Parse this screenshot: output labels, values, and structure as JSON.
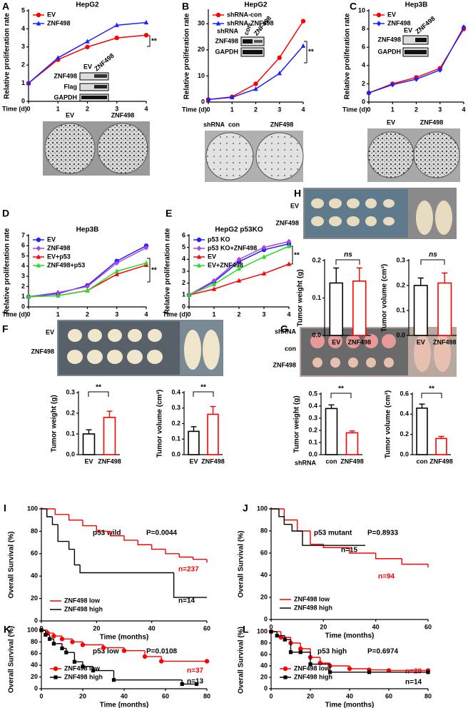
{
  "chart_data": [
    {
      "type": "line",
      "panel": "A",
      "title": "HepG2",
      "xlabel": "Time (d)",
      "ylabel": "Relative proliferation rate",
      "x": [
        0,
        1,
        2,
        3,
        4
      ],
      "xlim": [
        0,
        4
      ],
      "xticks": [
        0,
        1,
        2,
        3,
        4
      ],
      "ylim": [
        0,
        5
      ],
      "yticks": [
        0,
        1,
        2,
        3,
        4,
        5
      ],
      "legend": "upper left",
      "series": [
        {
          "name": "EV",
          "color": "#ff0000",
          "marker": "circle",
          "values": [
            1,
            2.3,
            3,
            3.5,
            3.65
          ]
        },
        {
          "name": "ZNF498",
          "color": "#1f1fff",
          "marker": "triangle",
          "values": [
            1,
            2.4,
            3.3,
            4.2,
            4.35
          ]
        }
      ],
      "annotations": [
        "**"
      ],
      "blot_labels": [
        "EV",
        "ZNF498",
        "ZNF498",
        "Flag",
        "GAPDH"
      ],
      "photo_labels": [
        "EV",
        "ZNF498"
      ]
    },
    {
      "type": "line",
      "panel": "B",
      "title": "HepG2",
      "xlabel": "Time (d)",
      "ylabel": "Relative proliferation rate",
      "x": [
        0,
        1,
        2,
        3,
        4
      ],
      "xlim": [
        0,
        4
      ],
      "xticks": [
        0,
        1,
        2,
        3,
        4
      ],
      "ylim": [
        0,
        35
      ],
      "yticks": [
        0,
        10,
        20,
        30
      ],
      "legend": "upper left",
      "series": [
        {
          "name": "shRNA-con",
          "color": "#ff0000",
          "marker": "circle",
          "values": [
            1,
            2,
            7,
            17,
            31
          ]
        },
        {
          "name": "shRNA-ZNF498",
          "color": "#1f1fff",
          "marker": "triangle",
          "values": [
            1,
            1.8,
            5,
            11,
            21.5
          ]
        }
      ],
      "annotations": [
        "**"
      ],
      "blot_labels": [
        "shRNA",
        "con",
        "ZNF498",
        "ZNF498",
        "GAPDH"
      ],
      "photo_labels": [
        "shRNA",
        "con",
        "ZNF498"
      ]
    },
    {
      "type": "line",
      "panel": "C",
      "title": "Hep3B",
      "xlabel": "Time (d)",
      "ylabel": "Relative proliferation rate",
      "x": [
        0,
        1,
        2,
        3,
        4
      ],
      "xlim": [
        0,
        4
      ],
      "xticks": [
        0,
        1,
        2,
        3,
        4
      ],
      "ylim": [
        0,
        10
      ],
      "yticks": [
        0,
        2,
        4,
        6,
        8,
        10
      ],
      "legend": "upper left",
      "series": [
        {
          "name": "EV",
          "color": "#ff0000",
          "marker": "circle",
          "values": [
            1,
            2,
            2.7,
            3.7,
            8
          ]
        },
        {
          "name": "ZNF498",
          "color": "#1f1fff",
          "marker": "diamond",
          "values": [
            1,
            1.9,
            2.5,
            3.5,
            8.2
          ]
        }
      ],
      "blot_labels": [
        "EV",
        "ZNF498",
        "ZNF498",
        "GAPDH"
      ],
      "photo_labels": [
        "EV",
        "ZNF498"
      ]
    },
    {
      "type": "line",
      "panel": "D",
      "title": "Hep3B",
      "xlabel": "Time (d)",
      "ylabel": "Relative proliferation rate",
      "x": [
        0,
        1,
        2,
        3,
        4
      ],
      "xlim": [
        0,
        4
      ],
      "xticks": [
        0,
        1,
        2,
        3,
        4
      ],
      "ylim": [
        0,
        7
      ],
      "yticks": [
        0,
        1,
        2,
        3,
        4,
        5,
        6,
        7
      ],
      "legend": "upper left",
      "series": [
        {
          "name": "EV",
          "color": "#1f1fff",
          "marker": "circle",
          "values": [
            1,
            1.3,
            2.1,
            4.5,
            6
          ]
        },
        {
          "name": "ZNF498",
          "color": "#b040e0",
          "marker": "diamond",
          "values": [
            1,
            1.4,
            2,
            4.3,
            5.8
          ]
        },
        {
          "name": "EV+p53",
          "color": "#ff0000",
          "marker": "triangle",
          "values": [
            1,
            1.1,
            1.6,
            3.2,
            4.1
          ]
        },
        {
          "name": "ZNF498+p53",
          "color": "#22dd22",
          "marker": "triangle",
          "values": [
            1,
            1.1,
            1.6,
            3.5,
            4.3
          ]
        }
      ],
      "annotations": [
        "**"
      ]
    },
    {
      "type": "line",
      "panel": "E",
      "title": "HepG2 p53KO",
      "xlabel": "Time (d)",
      "ylabel": "Relative proliferation rate",
      "x": [
        0,
        1,
        2,
        3,
        4
      ],
      "xlim": [
        0,
        4
      ],
      "xticks": [
        0,
        1,
        2,
        3,
        4
      ],
      "ylim": [
        0,
        6
      ],
      "yticks": [
        0,
        1,
        2,
        3,
        4,
        5,
        6
      ],
      "legend": "upper left",
      "series": [
        {
          "name": "p53 KO",
          "color": "#1f1fff",
          "marker": "circle",
          "values": [
            1,
            2.1,
            3.8,
            4.8,
            5.3
          ]
        },
        {
          "name": "p53 KO+ZNF498",
          "color": "#b040e0",
          "marker": "diamond",
          "values": [
            1,
            2.2,
            4,
            5,
            5.5
          ]
        },
        {
          "name": "EV",
          "color": "#ff0000",
          "marker": "triangle",
          "values": [
            1,
            1.5,
            2.2,
            2.8,
            3.6
          ]
        },
        {
          "name": "EV+ZNF498",
          "color": "#22dd22",
          "marker": "triangle",
          "values": [
            1,
            1.9,
            3.2,
            4.2,
            5.1
          ]
        }
      ],
      "annotations": [
        "**"
      ]
    },
    {
      "type": "bar",
      "panel": "F",
      "ylabel": "Tumor weight (g)",
      "categories": [
        "EV",
        "ZNF498"
      ],
      "values": [
        0.1,
        0.18
      ],
      "errors": [
        0.02,
        0.03
      ],
      "colors": [
        "#000000",
        "#ff0000"
      ],
      "ylim": [
        0,
        0.3
      ],
      "yticks": [
        {
          "value": 0,
          "label": "0.0"
        },
        0.1,
        0.2,
        0.3
      ],
      "annotations": [
        "**"
      ],
      "photo_labels": [
        "EV",
        "ZNF498"
      ]
    },
    {
      "type": "bar",
      "ylabel": "Tumor volume (cm³)",
      "categories": [
        "EV",
        "ZNF498"
      ],
      "values": [
        0.15,
        0.26
      ],
      "errors": [
        0.03,
        0.05
      ],
      "colors": [
        "#000000",
        "#ff0000"
      ],
      "ylim": [
        0,
        0.4
      ],
      "yticks": [
        {
          "value": 0,
          "label": "0.0"
        },
        0.1,
        0.2,
        0.3,
        0.4
      ],
      "annotations": [
        "**"
      ]
    },
    {
      "type": "bar",
      "panel": "G",
      "ylabel": "Tumor weight (g)",
      "categories": [
        "con",
        "ZNF498"
      ],
      "values": [
        0.38,
        0.18
      ],
      "errors": [
        0.03,
        0.015
      ],
      "colors": [
        "#000000",
        "#ff0000"
      ],
      "ylim": [
        0,
        0.5
      ],
      "yticks": [
        {
          "value": 0,
          "label": "0.0"
        },
        0.1,
        0.2,
        0.3,
        0.4,
        0.5
      ],
      "annotations": [
        "**",
        "shRNA"
      ],
      "photo_labels": [
        "shRNA",
        "con",
        "ZNF498"
      ]
    },
    {
      "type": "bar",
      "ylabel": "Tumor volume (cm³)",
      "categories": [
        "con",
        "ZNF498"
      ],
      "values": [
        0.46,
        0.16
      ],
      "errors": [
        0.04,
        0.02
      ],
      "colors": [
        "#000000",
        "#ff0000"
      ],
      "ylim": [
        0,
        0.6
      ],
      "yticks": [
        {
          "value": 0,
          "label": "0.0"
        },
        0.2,
        0.4,
        0.6
      ],
      "annotations": [
        "**"
      ]
    },
    {
      "type": "bar",
      "panel": "H",
      "ylabel": "Tumor weight (g)",
      "categories": [
        "EV",
        "ZNF498"
      ],
      "values": [
        0.14,
        0.145
      ],
      "errors": [
        0.04,
        0.035
      ],
      "colors": [
        "#000000",
        "#ff0000"
      ],
      "ylim": [
        0,
        0.2
      ],
      "yticks": [
        {
          "value": 0,
          "label": "0.0"
        },
        0.1,
        0.2
      ],
      "annotations": [
        "ns"
      ],
      "photo_labels": [
        "EV",
        "ZNF498"
      ]
    },
    {
      "type": "bar",
      "ylabel": "Tumor volume (cm³)",
      "categories": [
        "EV",
        "ZNF498"
      ],
      "values": [
        0.2,
        0.21
      ],
      "errors": [
        0.03,
        0.04
      ],
      "colors": [
        "#000000",
        "#ff0000"
      ],
      "ylim": [
        0,
        0.3
      ],
      "yticks": [
        {
          "value": 0,
          "label": "0.0"
        },
        0.1,
        0.2,
        0.3
      ],
      "annotations": [
        "ns"
      ]
    },
    {
      "type": "step",
      "panel": "I",
      "xlabel": "Time (months)",
      "ylabel": "Overall Survival (%)",
      "xlim": [
        0,
        60
      ],
      "xticks": [
        0,
        20,
        40,
        60
      ],
      "ylim": [
        0,
        100
      ],
      "yticks": [
        0,
        20,
        40,
        60,
        80,
        100
      ],
      "legend": "lower left",
      "series": [
        {
          "name": "ZNF498 low",
          "color": "#ff0000",
          "x": [
            0,
            5,
            10,
            15,
            20,
            25,
            30,
            35,
            40,
            45,
            50,
            55,
            60
          ],
          "values": [
            100,
            95,
            90,
            85,
            80,
            76,
            72,
            68,
            64,
            60,
            57,
            55,
            52
          ]
        },
        {
          "name": "ZNF498 high",
          "color": "#000000",
          "x": [
            0,
            2,
            4,
            6,
            10,
            12,
            14,
            30,
            48,
            60
          ],
          "values": [
            100,
            93,
            86,
            71,
            64,
            50,
            43,
            43,
            21,
            21
          ]
        }
      ],
      "annotations": [
        "p53 wild",
        "P=0.0044",
        "n=237",
        "n=14"
      ]
    },
    {
      "type": "step",
      "panel": "J",
      "xlabel": "Time (months)",
      "ylabel": "Overall Survival (%)",
      "xlim": [
        0,
        60
      ],
      "xticks": [
        0,
        20,
        40,
        60
      ],
      "ylim": [
        0,
        100
      ],
      "yticks": [
        0,
        20,
        40,
        60,
        80,
        100
      ],
      "legend": "lower left",
      "series": [
        {
          "name": "ZNF498 low",
          "color": "#ff0000",
          "x": [
            0,
            5,
            10,
            15,
            20,
            30,
            40,
            50,
            60
          ],
          "values": [
            100,
            90,
            80,
            68,
            65,
            60,
            55,
            50,
            47
          ]
        },
        {
          "name": "ZNF498 high",
          "color": "#000000",
          "x": [
            0,
            3,
            5,
            8,
            12,
            15,
            36
          ],
          "values": [
            100,
            93,
            86,
            80,
            67,
            67,
            67
          ]
        }
      ],
      "annotations": [
        "p53 mutant",
        "P=0.8933",
        "n=15",
        "n=94"
      ]
    },
    {
      "type": "step",
      "panel": "K",
      "xlabel": "Time (months)",
      "ylabel": "Overall Survival (%)",
      "xlim": [
        0,
        80
      ],
      "xticks": [
        0,
        20,
        40,
        60,
        80
      ],
      "ylim": [
        0,
        100
      ],
      "yticks": [
        0,
        20,
        40,
        60,
        80,
        100
      ],
      "legend": "lower left",
      "series": [
        {
          "name": "ZNF498 low",
          "color": "#ff0000",
          "marker": "circle",
          "x": [
            0,
            3,
            6,
            10,
            15,
            20,
            30,
            40,
            50,
            58,
            80
          ],
          "values": [
            100,
            95,
            90,
            85,
            80,
            75,
            70,
            65,
            55,
            47,
            47
          ]
        },
        {
          "name": "ZNF498 high",
          "color": "#000000",
          "marker": "square",
          "x": [
            0,
            2,
            4,
            6,
            10,
            12,
            16,
            20,
            25,
            35,
            68,
            75
          ],
          "values": [
            100,
            92,
            85,
            77,
            69,
            62,
            46,
            38,
            31,
            15,
            8,
            8
          ]
        }
      ],
      "annotations": [
        "p53 low",
        "P=0.0108",
        "n=37",
        "n=13"
      ]
    },
    {
      "type": "step",
      "panel": "L",
      "xlabel": "Time (months)",
      "ylabel": "Overall Survival (%)",
      "xlim": [
        0,
        80
      ],
      "xticks": [
        0,
        20,
        40,
        60,
        80
      ],
      "ylim": [
        0,
        100
      ],
      "yticks": [
        0,
        20,
        40,
        60,
        80,
        100
      ],
      "legend": "lower left",
      "series": [
        {
          "name": "ZNF498 low",
          "color": "#ff0000",
          "marker": "circle",
          "x": [
            0,
            5,
            10,
            15,
            20,
            25,
            30,
            40,
            50,
            60,
            80
          ],
          "values": [
            100,
            90,
            80,
            70,
            55,
            45,
            40,
            35,
            33,
            32,
            32
          ]
        },
        {
          "name": "ZNF498 high",
          "color": "#000000",
          "marker": "square",
          "x": [
            0,
            3,
            7,
            10,
            15,
            20,
            30,
            50,
            80
          ],
          "values": [
            100,
            93,
            86,
            64,
            64,
            43,
            29,
            29,
            29
          ]
        }
      ],
      "annotations": [
        "p53 high",
        "P=0.6974",
        "n=28",
        "n=14"
      ]
    }
  ]
}
